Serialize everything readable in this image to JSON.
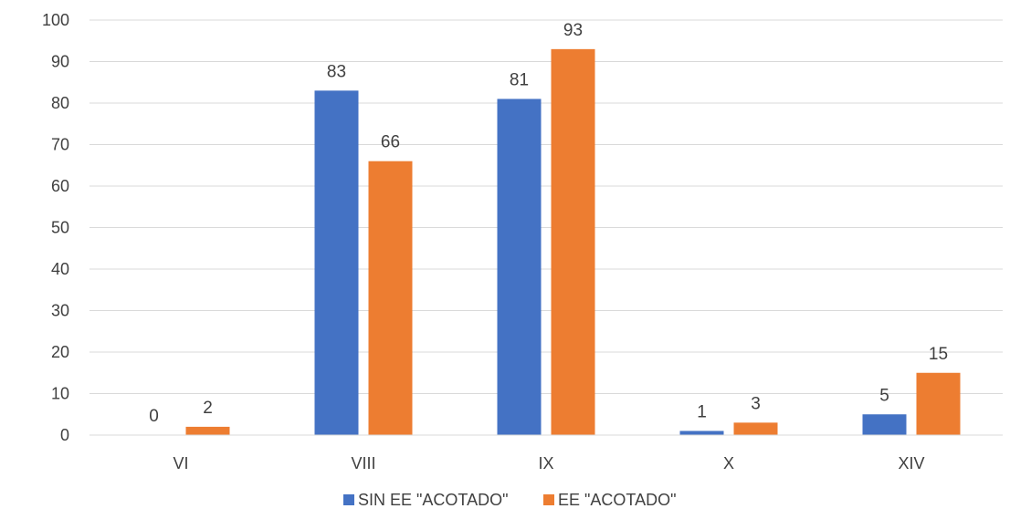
{
  "chart_data": {
    "type": "bar",
    "title": "",
    "xlabel": "",
    "ylabel": "",
    "categories": [
      "VI",
      "VIII",
      "IX",
      "X",
      "XIV"
    ],
    "series": [
      {
        "name": "SIN EE \"ACOTADO\"",
        "color": "#4472C4",
        "values": [
          0,
          83,
          81,
          1,
          5
        ]
      },
      {
        "name": "EE \"ACOTADO\"",
        "color": "#ED7D31",
        "values": [
          2,
          66,
          93,
          3,
          15
        ]
      }
    ],
    "ylim": [
      0,
      100
    ],
    "yticks": [
      0,
      10,
      20,
      30,
      40,
      50,
      60,
      70,
      80,
      90,
      100
    ],
    "grid": true,
    "legend": "bottom-center",
    "data_labels": true
  }
}
